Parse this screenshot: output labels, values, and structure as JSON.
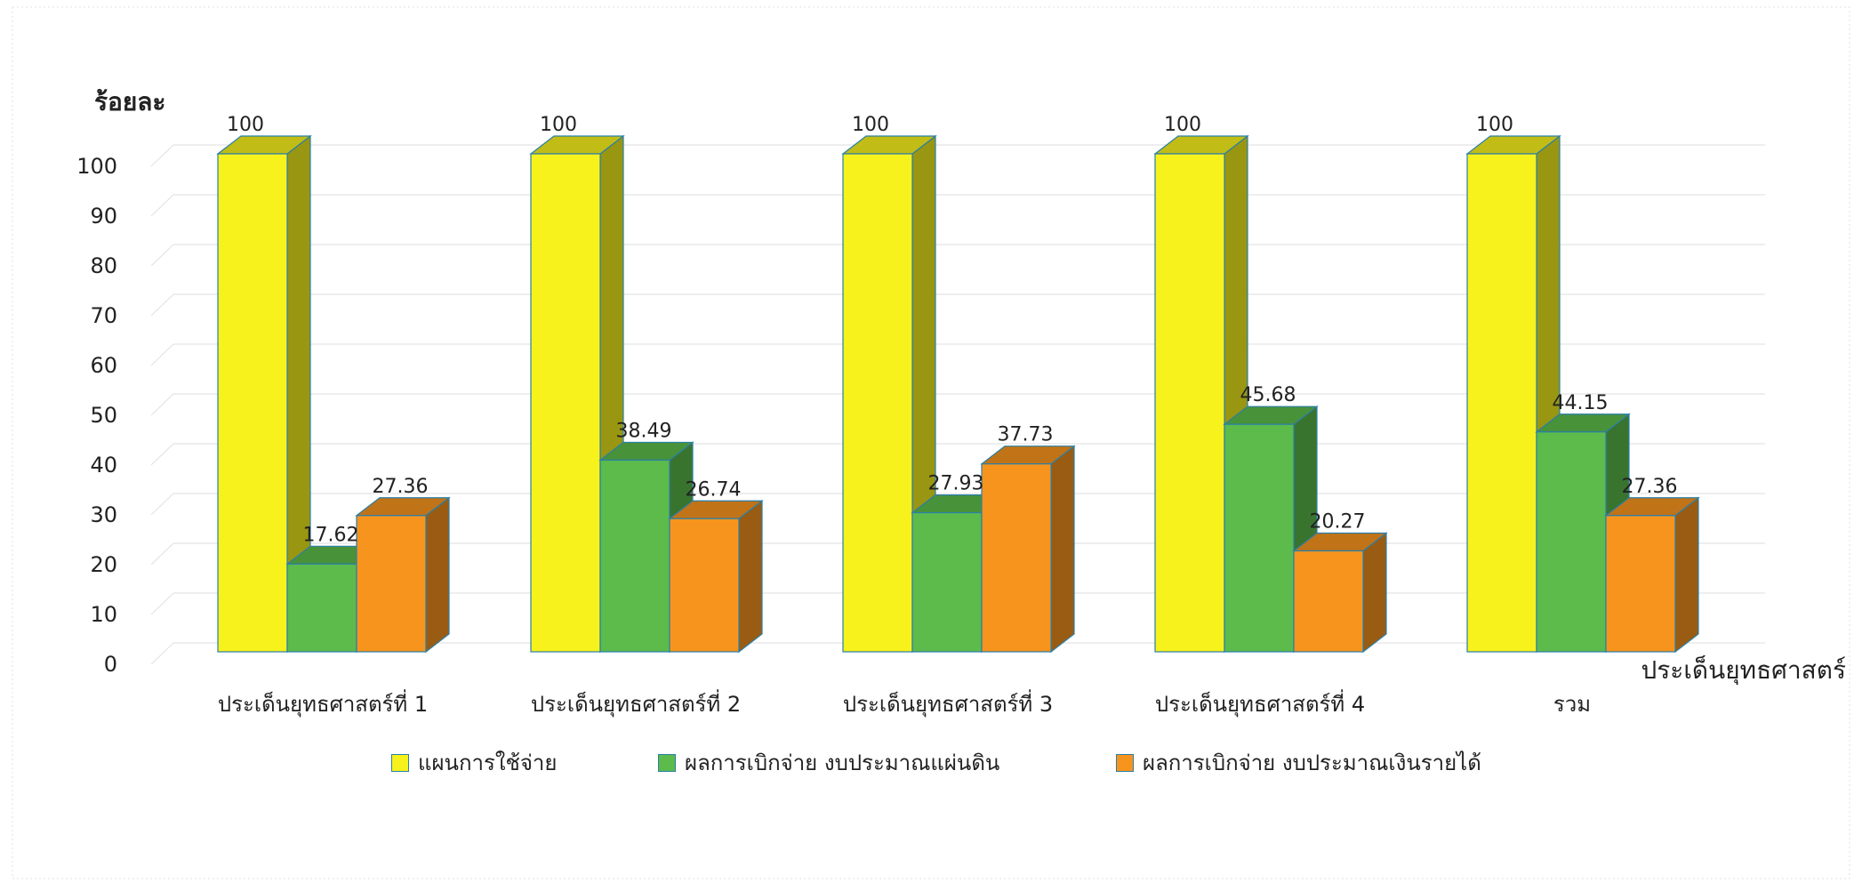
{
  "chart_data": {
    "type": "bar",
    "ylabel": "ร้อยละ",
    "xlabel": "ประเด็นยุทธศาสตร์",
    "ylim": [
      0,
      100
    ],
    "yticks": [
      0,
      10,
      20,
      30,
      40,
      50,
      60,
      70,
      80,
      90,
      100
    ],
    "grid": true,
    "legend_position": "bottom",
    "categories": [
      "ประเด็นยุทธศาสตร์ที่ 1",
      "ประเด็นยุทธศาสตร์ที่ 2",
      "ประเด็นยุทธศาสตร์ที่ 3",
      "ประเด็นยุทธศาสตร์ที่ 4",
      "รวม"
    ],
    "series": [
      {
        "name": "แผนการใช้จ่าย",
        "values": [
          100,
          100,
          100,
          100,
          100
        ],
        "labels": [
          "100",
          "100",
          "100",
          "100",
          "100"
        ],
        "color": "#f7f21c"
      },
      {
        "name": "ผลการเบิกจ่าย งบประมาณแผ่นดิน",
        "values": [
          17.62,
          38.49,
          27.93,
          45.68,
          44.15
        ],
        "labels": [
          "17.62",
          "38.49",
          "27.93",
          "45.68",
          "44.15"
        ],
        "color": "#5cbb4a"
      },
      {
        "name": "ผลการเบิกจ่าย งบประมาณเงินรายได้",
        "values": [
          27.36,
          26.74,
          37.73,
          20.27,
          27.36
        ],
        "labels": [
          "27.36",
          "26.74",
          "37.73",
          "20.27",
          "27.36"
        ],
        "color": "#f7941d"
      }
    ]
  }
}
